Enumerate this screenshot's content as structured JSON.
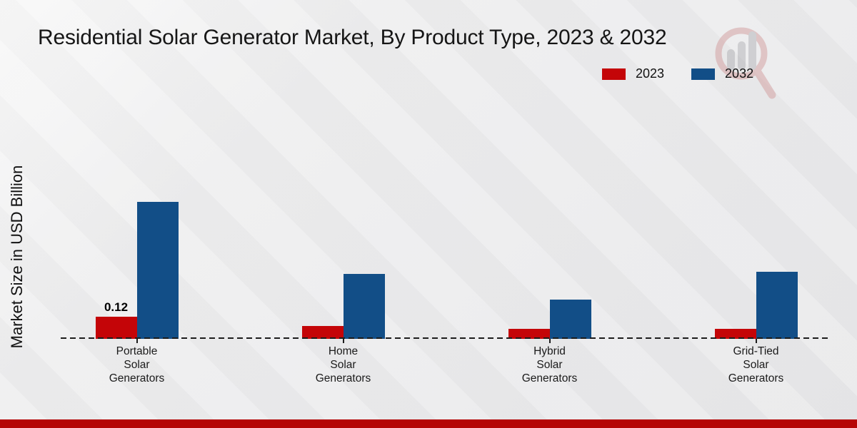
{
  "title": "Residential Solar Generator Market, By Product Type, 2023 & 2032",
  "y_axis_label": "Market Size in USD Billion",
  "legend": [
    {
      "label": "2023",
      "color": "#c40508"
    },
    {
      "label": "2032",
      "color": "#124e87"
    }
  ],
  "colors": {
    "series_2023": "#c40508",
    "series_2032": "#124e87",
    "footer_stripe": "#b50505",
    "baseline": "#1c1c1c",
    "watermark_pink": "#cf9494",
    "watermark_gray": "#ababaf"
  },
  "watermark": "magnifier-bar-chart-logo",
  "chart_data": {
    "type": "bar",
    "title": "Residential Solar Generator Market, By Product Type, 2023 & 2032",
    "xlabel": "",
    "ylabel": "Market Size in USD Billion",
    "categories": [
      "Portable Solar Generators",
      "Home Solar Generators",
      "Hybrid Solar Generators",
      "Grid-Tied Solar Generators"
    ],
    "categories_display": [
      "Portable\nSolar\nGenerators",
      "Home\nSolar\nGenerators",
      "Hybrid\nSolar\nGenerators",
      "Grid-Tied\nSolar\nGenerators"
    ],
    "series": [
      {
        "name": "2023",
        "color": "#c40508",
        "values": [
          0.12,
          0.07,
          0.055,
          0.055
        ]
      },
      {
        "name": "2032",
        "color": "#124e87",
        "values": [
          0.74,
          0.35,
          0.21,
          0.36
        ]
      }
    ],
    "annotations": [
      {
        "series": "2023",
        "category": "Portable Solar Generators",
        "value_label": "0.12"
      }
    ],
    "ylim": [
      0,
      0.8
    ],
    "grid": false,
    "y_axis_ticks_visible": false,
    "baseline_style": "dashed",
    "legend_position": "top-right"
  }
}
